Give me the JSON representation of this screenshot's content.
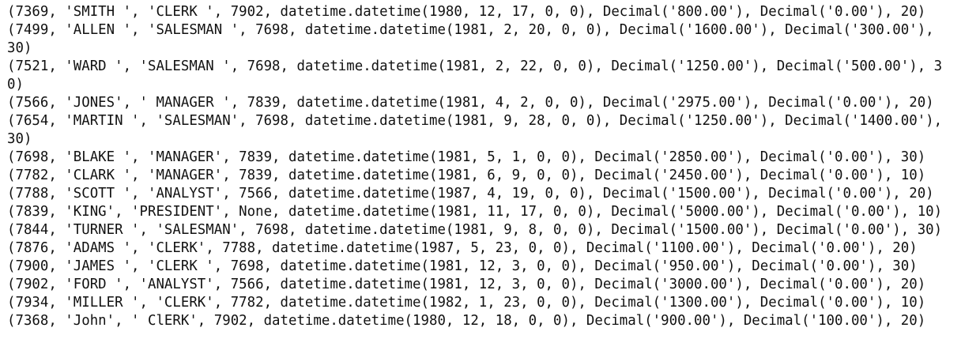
{
  "output_lines": [
    "(7369, 'SMITH ', 'CLERK ', 7902, datetime.datetime(1980, 12, 17, 0, 0), Decimal('800.00'), Decimal('0.00'), 20)",
    "(7499, 'ALLEN ', 'SALESMAN ', 7698, datetime.datetime(1981, 2, 20, 0, 0), Decimal('1600.00'), Decimal('300.00'),",
    "30)",
    "(7521, 'WARD ', 'SALESMAN ', 7698, datetime.datetime(1981, 2, 22, 0, 0), Decimal('1250.00'), Decimal('500.00'), 3",
    "0)",
    "(7566, 'JONES', ' MANAGER ', 7839, datetime.datetime(1981, 4, 2, 0, 0), Decimal('2975.00'), Decimal('0.00'), 20)",
    "(7654, 'MARTIN ', 'SALESMAN', 7698, datetime.datetime(1981, 9, 28, 0, 0), Decimal('1250.00'), Decimal('1400.00'),",
    "30)",
    "(7698, 'BLAKE ', 'MANAGER', 7839, datetime.datetime(1981, 5, 1, 0, 0), Decimal('2850.00'), Decimal('0.00'), 30)",
    "(7782, 'CLARK ', 'MANAGER', 7839, datetime.datetime(1981, 6, 9, 0, 0), Decimal('2450.00'), Decimal('0.00'), 10)",
    "(7788, 'SCOTT ', 'ANALYST', 7566, datetime.datetime(1987, 4, 19, 0, 0), Decimal('1500.00'), Decimal('0.00'), 20)",
    "(7839, 'KING', 'PRESIDENT', None, datetime.datetime(1981, 11, 17, 0, 0), Decimal('5000.00'), Decimal('0.00'), 10)",
    "(7844, 'TURNER ', 'SALESMAN', 7698, datetime.datetime(1981, 9, 8, 0, 0), Decimal('1500.00'), Decimal('0.00'), 30)",
    "(7876, 'ADAMS ', 'CLERK', 7788, datetime.datetime(1987, 5, 23, 0, 0), Decimal('1100.00'), Decimal('0.00'), 20)",
    "(7900, 'JAMES ', 'CLERK ', 7698, datetime.datetime(1981, 12, 3, 0, 0), Decimal('950.00'), Decimal('0.00'), 30)",
    "(7902, 'FORD ', 'ANALYST', 7566, datetime.datetime(1981, 12, 3, 0, 0), Decimal('3000.00'), Decimal('0.00'), 20)",
    "(7934, 'MILLER ', 'CLERK', 7782, datetime.datetime(1982, 1, 23, 0, 0), Decimal('1300.00'), Decimal('0.00'), 10)",
    "(7368, 'John', ' ClERK', 7902, datetime.datetime(1980, 12, 18, 0, 0), Decimal('900.00'), Decimal('100.00'), 20)"
  ]
}
